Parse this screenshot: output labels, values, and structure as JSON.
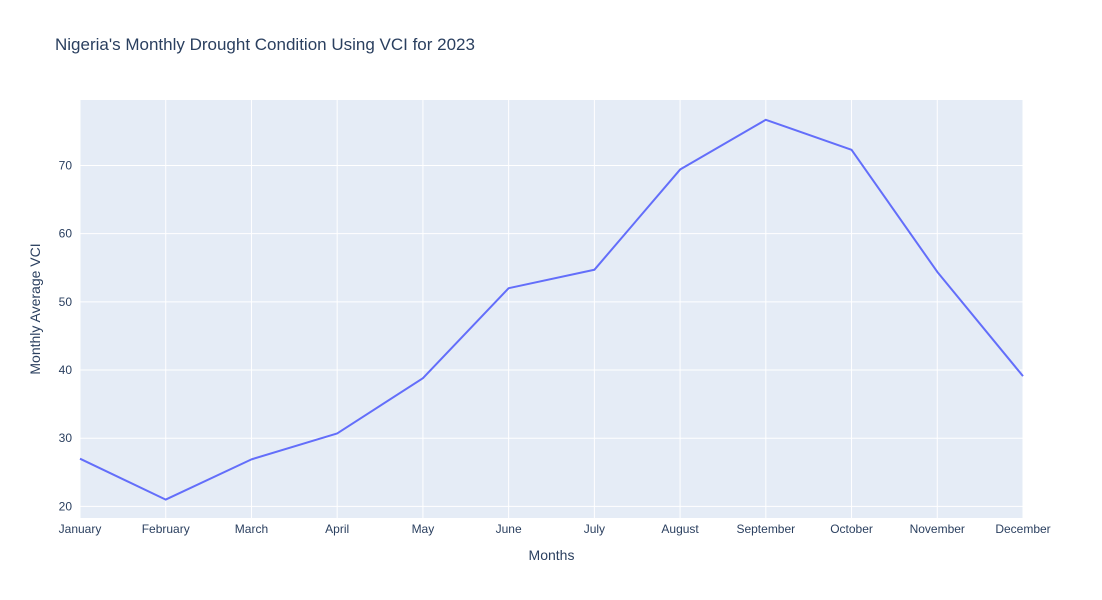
{
  "chart_data": {
    "type": "line",
    "title": "Nigeria's Monthly Drought Condition Using VCI for 2023",
    "xlabel": "Months",
    "ylabel": "Monthly Average VCI",
    "categories": [
      "January",
      "February",
      "March",
      "April",
      "May",
      "June",
      "July",
      "August",
      "September",
      "October",
      "November",
      "December"
    ],
    "series": [
      {
        "values": [
          27.0,
          21.0,
          26.9,
          30.7,
          38.8,
          52.0,
          54.7,
          69.4,
          76.7,
          72.3,
          54.4,
          39.1
        ]
      }
    ],
    "yticks": [
      20,
      30,
      40,
      50,
      60,
      70
    ],
    "ylim": [
      18.3,
      79.6
    ],
    "grid": true,
    "legend": "none",
    "colors": {
      "line": "#636efa",
      "plot_background": "#e5ecf6",
      "grid": "#ffffff",
      "text": "#2a3f5f"
    }
  }
}
